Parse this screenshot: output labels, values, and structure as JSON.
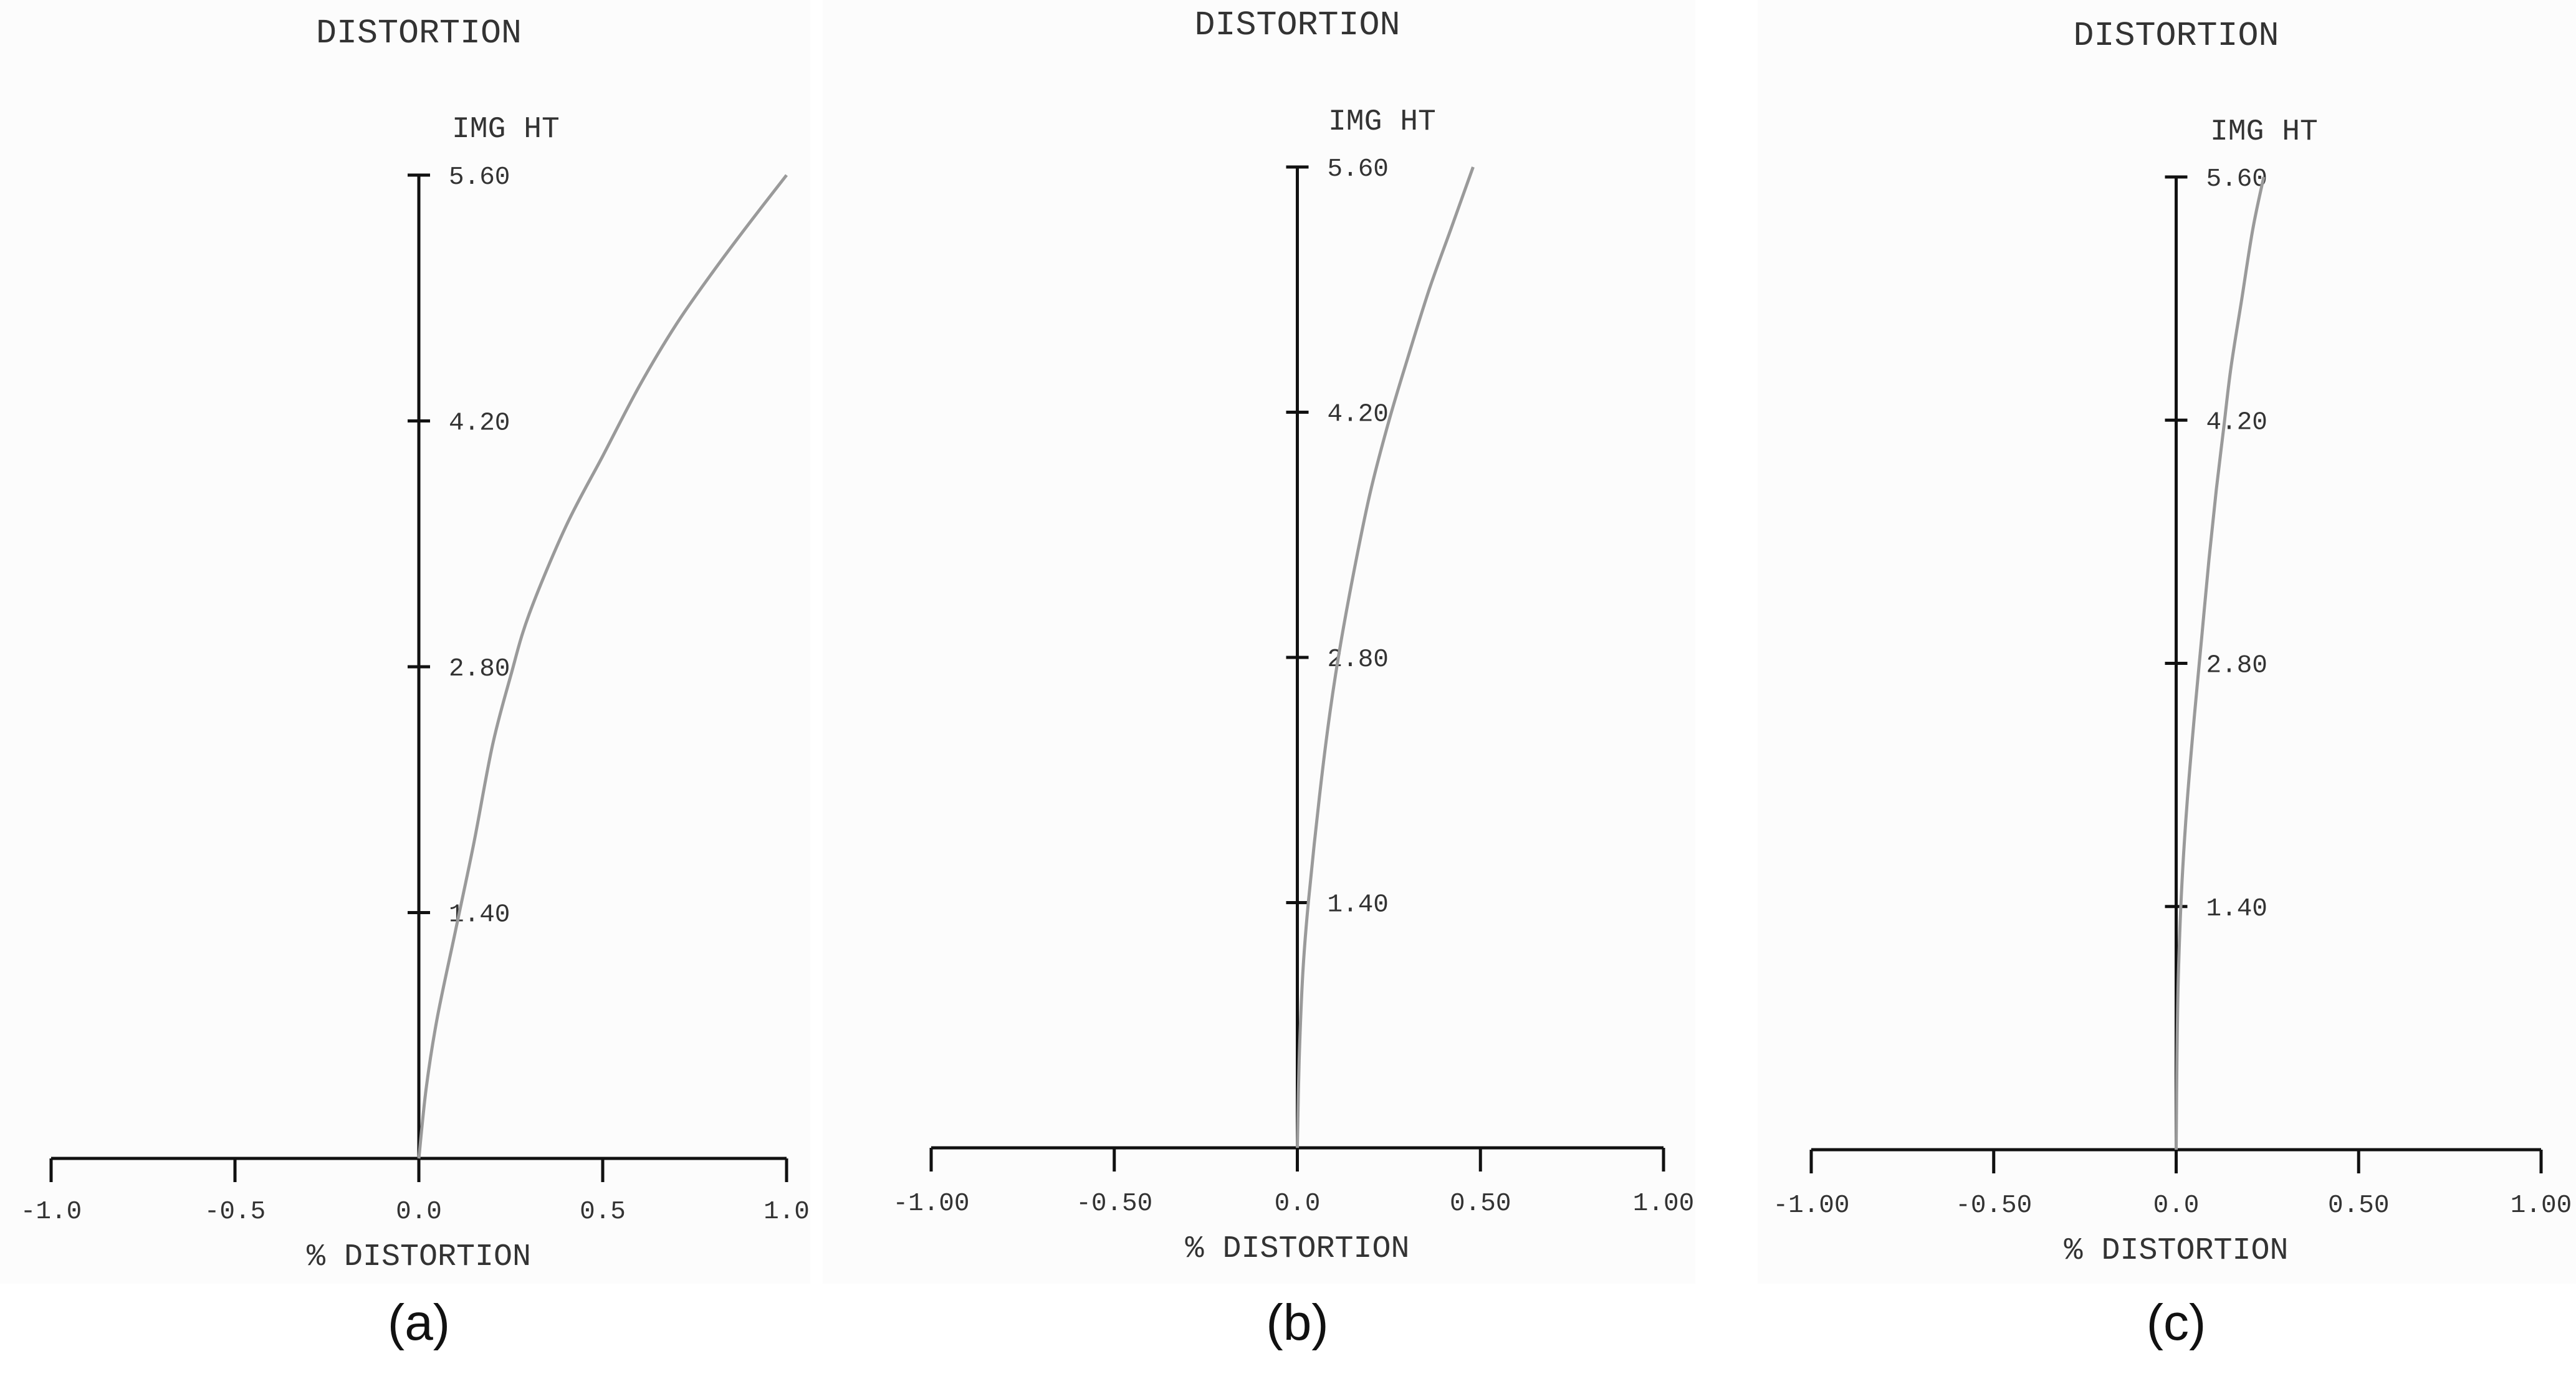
{
  "chart_data": [
    {
      "type": "line",
      "title": "DISTORTION",
      "ylabel": "IMG HT",
      "xlabel": "% DISTORTION",
      "caption": "(a)",
      "xlim": [
        -1.0,
        1.0
      ],
      "ylim": [
        0,
        5.6
      ],
      "x_ticks": [
        "-1.0",
        "-0.5",
        "0.0",
        "0.5",
        "1.0"
      ],
      "y_ticks": [
        "1.40",
        "2.80",
        "4.20",
        "5.60"
      ],
      "series": [
        {
          "color": "#9a9a9a",
          "x": [
            0.0,
            0.02,
            0.05,
            0.1,
            0.15,
            0.2,
            0.25,
            0.3,
            0.4,
            0.5,
            0.6,
            0.7,
            0.8,
            0.9,
            1.0
          ],
          "y": [
            0.0,
            0.4,
            0.8,
            1.3,
            1.8,
            2.35,
            2.75,
            3.1,
            3.6,
            4.0,
            4.4,
            4.75,
            5.05,
            5.33,
            5.6
          ]
        }
      ]
    },
    {
      "type": "line",
      "title": "DISTORTION",
      "ylabel": "IMG HT",
      "xlabel": "% DISTORTION",
      "caption": "(b)",
      "xlim": [
        -1.0,
        1.0
      ],
      "ylim": [
        0,
        5.6
      ],
      "x_ticks": [
        "-1.00",
        "-0.50",
        "0.0",
        "0.50",
        "1.00"
      ],
      "y_ticks": [
        "1.40",
        "2.80",
        "4.20",
        "5.60"
      ],
      "series": [
        {
          "color": "#9a9a9a",
          "x": [
            0.0,
            0.005,
            0.015,
            0.03,
            0.06,
            0.09,
            0.12,
            0.16,
            0.2,
            0.25,
            0.3,
            0.36,
            0.42,
            0.48
          ],
          "y": [
            0.0,
            0.5,
            1.0,
            1.4,
            2.0,
            2.5,
            2.9,
            3.35,
            3.75,
            4.15,
            4.5,
            4.9,
            5.25,
            5.6
          ]
        }
      ]
    },
    {
      "type": "line",
      "title": "DISTORTION",
      "ylabel": "IMG HT",
      "xlabel": "% DISTORTION",
      "caption": "(c)",
      "xlim": [
        -1.0,
        1.0
      ],
      "ylim": [
        0,
        5.6
      ],
      "x_ticks": [
        "-1.00",
        "-0.50",
        "0.0",
        "0.50",
        "1.00"
      ],
      "y_ticks": [
        "1.40",
        "2.80",
        "4.20",
        "5.60"
      ],
      "series": [
        {
          "color": "#9a9a9a",
          "x": [
            0.0,
            0.002,
            0.006,
            0.015,
            0.03,
            0.05,
            0.07,
            0.09,
            0.11,
            0.13,
            0.15,
            0.18,
            0.21,
            0.24
          ],
          "y": [
            0.0,
            0.5,
            1.0,
            1.5,
            2.0,
            2.5,
            2.95,
            3.4,
            3.8,
            4.15,
            4.5,
            4.9,
            5.3,
            5.6
          ]
        }
      ]
    }
  ]
}
